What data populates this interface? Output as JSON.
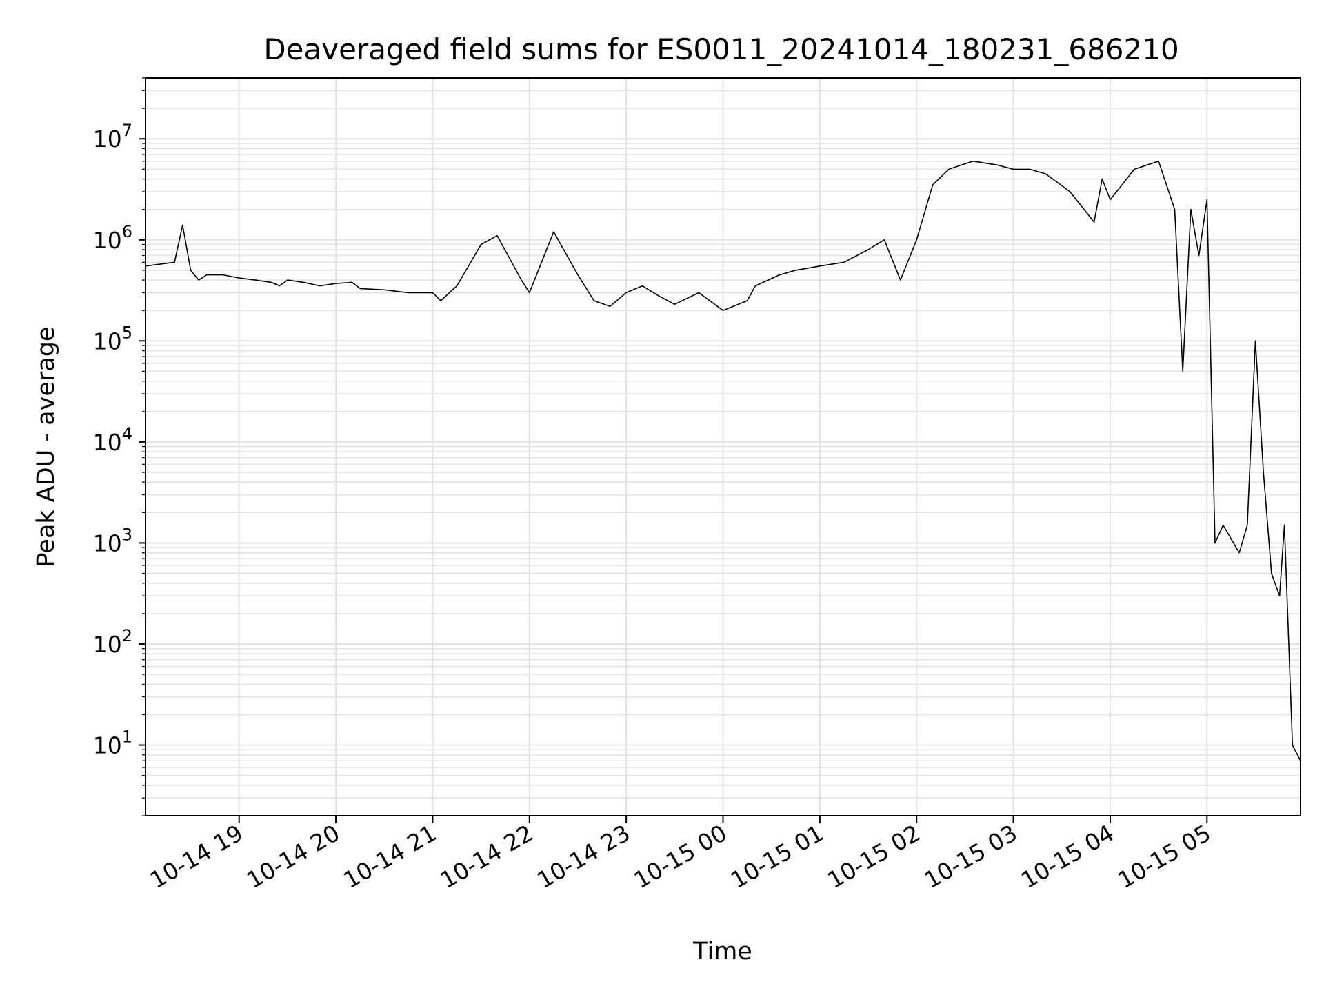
{
  "chart_data": {
    "type": "line",
    "title": "Deaveraged field sums for ES0011_20241014_180231_686210",
    "xlabel": "Time",
    "ylabel": "Peak ADU - average",
    "yscale": "log",
    "xlim": [
      "2024-10-14 18:02",
      "2024-10-15 05:58"
    ],
    "ylim": [
      2.0,
      40000000
    ],
    "grid": true,
    "x_ticks": [
      "10-14 19",
      "10-14 20",
      "10-14 21",
      "10-14 22",
      "10-14 23",
      "10-15 00",
      "10-15 01",
      "10-15 02",
      "10-15 03",
      "10-15 04",
      "10-15 05"
    ],
    "x_tick_times": [
      "2024-10-14 19:00",
      "2024-10-14 20:00",
      "2024-10-14 21:00",
      "2024-10-14 22:00",
      "2024-10-14 23:00",
      "2024-10-15 00:00",
      "2024-10-15 01:00",
      "2024-10-15 02:00",
      "2024-10-15 03:00",
      "2024-10-15 04:00",
      "2024-10-15 05:00"
    ],
    "y_ticks": [
      {
        "base": "10",
        "exp": "1",
        "value": 10
      },
      {
        "base": "10",
        "exp": "2",
        "value": 100
      },
      {
        "base": "10",
        "exp": "3",
        "value": 1000
      },
      {
        "base": "10",
        "exp": "4",
        "value": 10000
      },
      {
        "base": "10",
        "exp": "5",
        "value": 100000
      },
      {
        "base": "10",
        "exp": "6",
        "value": 1000000
      },
      {
        "base": "10",
        "exp": "7",
        "value": 10000000
      }
    ],
    "series": [
      {
        "color": "#000000",
        "x": [
          "2024-10-14 18:02",
          "2024-10-14 18:20",
          "2024-10-14 18:25",
          "2024-10-14 18:30",
          "2024-10-14 18:35",
          "2024-10-14 18:40",
          "2024-10-14 18:50",
          "2024-10-14 19:00",
          "2024-10-14 19:10",
          "2024-10-14 19:20",
          "2024-10-14 19:25",
          "2024-10-14 19:30",
          "2024-10-14 19:40",
          "2024-10-14 19:50",
          "2024-10-14 20:00",
          "2024-10-14 20:10",
          "2024-10-14 20:15",
          "2024-10-14 20:30",
          "2024-10-14 20:45",
          "2024-10-14 21:00",
          "2024-10-14 21:05",
          "2024-10-14 21:15",
          "2024-10-14 21:30",
          "2024-10-14 21:40",
          "2024-10-14 21:55",
          "2024-10-14 22:00",
          "2024-10-14 22:15",
          "2024-10-14 22:30",
          "2024-10-14 22:40",
          "2024-10-14 22:50",
          "2024-10-14 23:00",
          "2024-10-14 23:10",
          "2024-10-14 23:20",
          "2024-10-14 23:30",
          "2024-10-14 23:45",
          "2024-10-15 00:00",
          "2024-10-15 00:15",
          "2024-10-15 00:20",
          "2024-10-15 00:35",
          "2024-10-15 00:45",
          "2024-10-15 01:00",
          "2024-10-15 01:15",
          "2024-10-15 01:30",
          "2024-10-15 01:40",
          "2024-10-15 01:50",
          "2024-10-15 02:00",
          "2024-10-15 02:10",
          "2024-10-15 02:20",
          "2024-10-15 02:35",
          "2024-10-15 02:50",
          "2024-10-15 03:00",
          "2024-10-15 03:10",
          "2024-10-15 03:20",
          "2024-10-15 03:35",
          "2024-10-15 03:50",
          "2024-10-15 03:55",
          "2024-10-15 04:00",
          "2024-10-15 04:15",
          "2024-10-15 04:30",
          "2024-10-15 04:40",
          "2024-10-15 04:45",
          "2024-10-15 04:50",
          "2024-10-15 04:55",
          "2024-10-15 05:00",
          "2024-10-15 05:05",
          "2024-10-15 05:10",
          "2024-10-15 05:20",
          "2024-10-15 05:25",
          "2024-10-15 05:30",
          "2024-10-15 05:35",
          "2024-10-15 05:40",
          "2024-10-15 05:45",
          "2024-10-15 05:48",
          "2024-10-15 05:50",
          "2024-10-15 05:53",
          "2024-10-15 05:58"
        ],
        "values": [
          550000,
          600000,
          1400000,
          500000,
          400000,
          450000,
          450000,
          420000,
          400000,
          380000,
          350000,
          400000,
          380000,
          350000,
          370000,
          380000,
          330000,
          320000,
          300000,
          300000,
          250000,
          350000,
          900000,
          1100000,
          400000,
          300000,
          1200000,
          450000,
          250000,
          220000,
          300000,
          350000,
          280000,
          230000,
          300000,
          200000,
          250000,
          350000,
          450000,
          500000,
          550000,
          600000,
          800000,
          1000000,
          400000,
          1000000,
          3500000,
          5000000,
          6000000,
          5500000,
          5000000,
          5000000,
          4500000,
          3000000,
          1500000,
          4000000,
          2500000,
          5000000,
          6000000,
          2000000,
          50000,
          2000000,
          700000,
          2500000,
          1000,
          1500,
          800,
          1500,
          100000,
          5000,
          500,
          300,
          1500,
          200,
          10,
          7
        ]
      }
    ]
  }
}
